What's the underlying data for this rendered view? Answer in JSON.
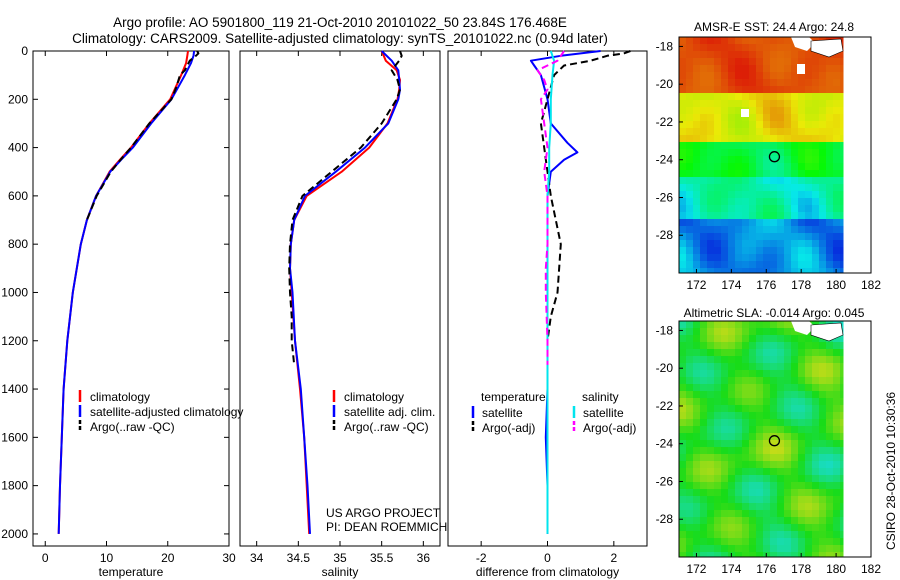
{
  "title_line1": "Argo profile: AO 5901800_119 21-Oct-2010 20101022_50 23.84S 176.468E",
  "title_line2": "Climatology: CARS2009. Satellite-adjusted climatology: synTS_20101022.nc (0.94d later)",
  "project_line1": "US ARGO PROJECT",
  "project_line2": "PI: DEAN ROEMMICH",
  "timestamp": "CSIRO 28-Oct-2010 10:30:36",
  "colors": {
    "climatology": "#ff0000",
    "satellite": "#0000ff",
    "argo": "#000000",
    "salinity_sat": "#00e5ee",
    "salinity_argo": "#ff00ff"
  },
  "chart_data": [
    {
      "type": "line",
      "xlabel": "temperature",
      "xlim": [
        -2,
        30
      ],
      "ylim": [
        0,
        2050
      ],
      "y_inverted": true,
      "xticks": [
        0,
        10,
        20,
        30
      ],
      "yticks": [
        0,
        200,
        400,
        600,
        800,
        1000,
        1200,
        1400,
        1600,
        1800,
        2000
      ],
      "legend": [
        "climatology",
        "satellite-adjusted climatology",
        "Argo(..raw -QC)"
      ],
      "legend_placement": "lower-right",
      "series": [
        {
          "name": "climatology",
          "color": "#ff0000",
          "style": "solid",
          "depth": [
            0,
            20,
            50,
            100,
            150,
            200,
            300,
            400,
            450,
            500,
            600,
            700,
            800,
            1000,
            1200,
            1400,
            1600,
            1800,
            2000
          ],
          "values": [
            23.3,
            23.2,
            23.0,
            22.2,
            21.3,
            20.4,
            17.0,
            14.0,
            12.2,
            10.5,
            8.3,
            6.8,
            5.8,
            4.5,
            3.6,
            3.0,
            2.7,
            2.4,
            2.2
          ]
        },
        {
          "name": "satellite-adjusted climatology",
          "color": "#0000ff",
          "style": "solid",
          "depth": [
            0,
            20,
            50,
            100,
            150,
            200,
            300,
            400,
            450,
            500,
            600,
            700,
            800,
            1000,
            1200,
            1400,
            1600,
            1800,
            2000
          ],
          "values": [
            24.3,
            24.2,
            23.8,
            22.8,
            21.7,
            20.6,
            17.3,
            14.3,
            12.4,
            10.6,
            8.3,
            6.8,
            5.8,
            4.5,
            3.6,
            3.0,
            2.7,
            2.4,
            2.2
          ]
        },
        {
          "name": "Argo(..raw -QC)",
          "color": "#000000",
          "style": "dashed",
          "depth": [
            0,
            10,
            20,
            40,
            60,
            80,
            100,
            150,
            200,
            300,
            400,
            450,
            500,
            600,
            700
          ],
          "values": [
            24.8,
            25.0,
            24.6,
            23.6,
            23.2,
            22.8,
            22.0,
            21.4,
            20.6,
            17.0,
            14.0,
            12.3,
            10.7,
            8.4,
            6.8
          ]
        }
      ]
    },
    {
      "type": "line",
      "xlabel": "salinity",
      "xlim": [
        33.8,
        36.2
      ],
      "ylim": [
        0,
        2050
      ],
      "y_inverted": true,
      "xticks": [
        34,
        34.5,
        35,
        35.5,
        36
      ],
      "yticks": [],
      "legend": [
        "climatology",
        "satellite adj. clim.",
        "Argo(..raw -QC)"
      ],
      "legend_placement": "lower-right",
      "series": [
        {
          "name": "climatology",
          "color": "#ff0000",
          "style": "solid",
          "depth": [
            0,
            40,
            80,
            120,
            160,
            200,
            300,
            400,
            500,
            600,
            700,
            800,
            900,
            1000,
            1200,
            1400,
            1600,
            1800,
            2000
          ],
          "values": [
            35.5,
            35.55,
            35.68,
            35.72,
            35.71,
            35.69,
            35.57,
            35.35,
            35.02,
            34.6,
            34.45,
            34.41,
            34.4,
            34.42,
            34.46,
            34.52,
            34.57,
            34.6,
            34.63
          ]
        },
        {
          "name": "satellite adj. clim.",
          "color": "#0000ff",
          "style": "solid",
          "depth": [
            0,
            40,
            80,
            120,
            160,
            200,
            300,
            400,
            500,
            600,
            700,
            800,
            900,
            1000,
            1200,
            1400,
            1600,
            1800,
            2000
          ],
          "values": [
            35.5,
            35.62,
            35.7,
            35.71,
            35.72,
            35.7,
            35.58,
            35.3,
            34.95,
            34.58,
            34.45,
            34.41,
            34.4,
            34.43,
            34.46,
            34.53,
            34.57,
            34.61,
            34.64
          ]
        },
        {
          "name": "Argo(..raw -QC)",
          "color": "#000000",
          "style": "dashed",
          "depth": [
            0,
            20,
            40,
            80,
            120,
            160,
            200,
            300,
            400,
            500,
            600,
            700,
            800,
            900,
            1000,
            1100,
            1200,
            1300
          ],
          "values": [
            35.72,
            35.74,
            35.71,
            35.62,
            35.69,
            35.72,
            35.68,
            35.5,
            35.25,
            34.9,
            34.55,
            34.43,
            34.4,
            34.39,
            34.4,
            34.42,
            34.42,
            34.45
          ]
        }
      ]
    },
    {
      "type": "line",
      "xlabel": "difference from climatology",
      "xlim": [
        -3,
        3
      ],
      "ylim": [
        0,
        2050
      ],
      "y_inverted": true,
      "xticks": [
        -2,
        0,
        2
      ],
      "yticks": [],
      "legend_headers": [
        "temperature",
        "salinity"
      ],
      "legend": [
        "satellite",
        "Argo(-adj)",
        "satellite",
        "Argo(-adj)"
      ],
      "legend_placement": "lower-right",
      "series": [
        {
          "name": "temperature satellite",
          "color": "#0000ff",
          "style": "solid",
          "depth": [
            0,
            20,
            40,
            60,
            100,
            150,
            200,
            300,
            380,
            420,
            450,
            500,
            600,
            800,
            1000,
            1200,
            1400,
            1600,
            1800,
            2000
          ],
          "values": [
            1.6,
            0.4,
            -0.5,
            -0.4,
            -0.2,
            -0.1,
            0.0,
            0.1,
            0.6,
            0.9,
            0.5,
            0.1,
            0.0,
            0.0,
            0.0,
            0.0,
            0.0,
            -0.05,
            0.0,
            0.0
          ]
        },
        {
          "name": "temperature Argo(-adj)",
          "color": "#000000",
          "style": "dashed",
          "depth": [
            0,
            10,
            20,
            40,
            60,
            100,
            200,
            300,
            400,
            500,
            600,
            800,
            1000,
            1100,
            1200,
            1300
          ],
          "values": [
            2.5,
            2.3,
            1.8,
            1.3,
            0.5,
            0.2,
            0.0,
            -0.2,
            -0.1,
            0.0,
            0.1,
            0.4,
            0.3,
            0.1,
            0.0,
            0.0
          ]
        },
        {
          "name": "salinity satellite",
          "color": "#00e5ee",
          "style": "solid",
          "depth": [
            0,
            40,
            100,
            200,
            300,
            400,
            500,
            600,
            800,
            1000,
            1200,
            1400,
            1600,
            1800,
            2000
          ],
          "values": [
            0.1,
            0.2,
            0.15,
            0.1,
            0.1,
            0.05,
            0.05,
            0.0,
            0.0,
            0.0,
            0.0,
            0.0,
            0.0,
            0.0,
            0.0
          ]
        },
        {
          "name": "salinity Argo(-adj)",
          "color": "#ff00ff",
          "style": "dashed",
          "depth": [
            0,
            40,
            80,
            120,
            160,
            200,
            300,
            400,
            500,
            600,
            700,
            800,
            900,
            1000,
            1200,
            1300
          ],
          "values": [
            0.5,
            0.3,
            -0.3,
            -0.1,
            0.0,
            -0.2,
            -0.1,
            0.0,
            -0.1,
            0.0,
            0.0,
            0.0,
            -0.05,
            -0.05,
            0.0,
            0.0
          ]
        }
      ]
    },
    {
      "type": "heatmap",
      "title": "AMSR-E SST: 24.4 Argo: 24.8",
      "xlim": [
        171,
        182
      ],
      "ylim": [
        -30,
        -17.5
      ],
      "xticks": [
        172,
        174,
        176,
        178,
        180,
        182
      ],
      "yticks": [
        -18,
        -20,
        -22,
        -24,
        -26,
        -28
      ],
      "marker": {
        "lon": 176.468,
        "lat": -23.84
      }
    },
    {
      "type": "heatmap",
      "title": "Altimetric SLA: -0.014 Argo: 0.045",
      "xlim": [
        171,
        182
      ],
      "ylim": [
        -30,
        -17.5
      ],
      "xticks": [
        172,
        174,
        176,
        178,
        180,
        182
      ],
      "yticks": [
        -18,
        -20,
        -22,
        -24,
        -26,
        -28
      ],
      "marker": {
        "lon": 176.468,
        "lat": -23.84
      }
    }
  ]
}
